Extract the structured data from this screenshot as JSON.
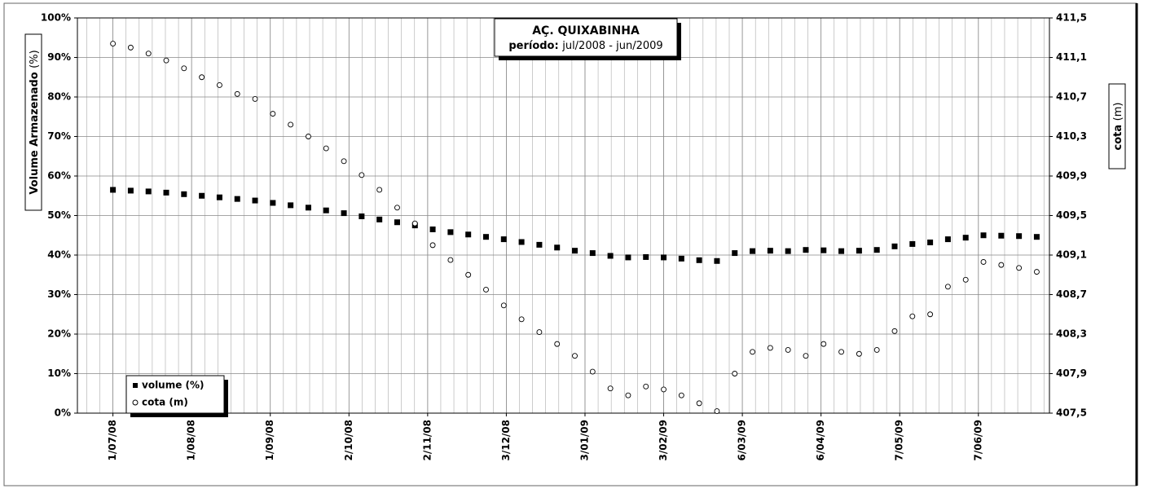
{
  "chart_data": {
    "type": "scatter",
    "title": "AÇ. QUIXABINHA",
    "subtitle_label": "período:",
    "subtitle": "jul/2008 - jun/2009",
    "y_label": "Volume Armazenado",
    "y_label_unit": "(%)",
    "y2_label": "cota",
    "y2_label_unit": "(m)",
    "xlim": [
      "2008-06-17",
      "2009-07-05"
    ],
    "xticks": [
      {
        "value": "2008-07-01",
        "label": "1/07/08"
      },
      {
        "value": "2008-08-01",
        "label": "1/08/08"
      },
      {
        "value": "2008-09-01",
        "label": "1/09/08"
      },
      {
        "value": "2008-10-02",
        "label": "2/10/08"
      },
      {
        "value": "2008-11-02",
        "label": "2/11/08"
      },
      {
        "value": "2008-12-03",
        "label": "3/12/08"
      },
      {
        "value": "2009-01-03",
        "label": "3/01/09"
      },
      {
        "value": "2009-02-03",
        "label": "3/02/09"
      },
      {
        "value": "2009-03-06",
        "label": "6/03/09"
      },
      {
        "value": "2009-04-06",
        "label": "6/04/09"
      },
      {
        "value": "2009-05-07",
        "label": "7/05/09"
      },
      {
        "value": "2009-06-07",
        "label": "7/06/09"
      }
    ],
    "ylim": [
      0,
      100
    ],
    "yticks": [
      {
        "value": 0,
        "label": "0%"
      },
      {
        "value": 10,
        "label": "10%"
      },
      {
        "value": 20,
        "label": "20%"
      },
      {
        "value": 30,
        "label": "30%"
      },
      {
        "value": 40,
        "label": "40%"
      },
      {
        "value": 50,
        "label": "50%"
      },
      {
        "value": 60,
        "label": "60%"
      },
      {
        "value": 70,
        "label": "70%"
      },
      {
        "value": 80,
        "label": "80%"
      },
      {
        "value": 90,
        "label": "90%"
      },
      {
        "value": 100,
        "label": "100%"
      }
    ],
    "y2lim": [
      407.5,
      411.5
    ],
    "y2ticks": [
      {
        "value": 407.5,
        "label": "407,5"
      },
      {
        "value": 407.9,
        "label": "407,9"
      },
      {
        "value": 408.3,
        "label": "408,3"
      },
      {
        "value": 408.7,
        "label": "408,7"
      },
      {
        "value": 409.1,
        "label": "409,1"
      },
      {
        "value": 409.5,
        "label": "409,5"
      },
      {
        "value": 409.9,
        "label": "409,9"
      },
      {
        "value": 410.3,
        "label": "410,3"
      },
      {
        "value": 410.7,
        "label": "410,7"
      },
      {
        "value": 411.1,
        "label": "411,1"
      },
      {
        "value": 411.5,
        "label": "411,5"
      }
    ],
    "grid": true,
    "legend": "lower left",
    "x": [
      "2008-07-01",
      "2008-07-08",
      "2008-07-15",
      "2008-07-22",
      "2008-07-29",
      "2008-08-05",
      "2008-08-12",
      "2008-08-19",
      "2008-08-26",
      "2008-09-02",
      "2008-09-09",
      "2008-09-16",
      "2008-09-23",
      "2008-09-30",
      "2008-10-07",
      "2008-10-14",
      "2008-10-21",
      "2008-10-28",
      "2008-11-04",
      "2008-11-11",
      "2008-11-18",
      "2008-11-25",
      "2008-12-02",
      "2008-12-09",
      "2008-12-16",
      "2008-12-23",
      "2008-12-30",
      "2009-01-06",
      "2009-01-13",
      "2009-01-20",
      "2009-01-27",
      "2009-02-03",
      "2009-02-10",
      "2009-02-17",
      "2009-02-24",
      "2009-03-03",
      "2009-03-10",
      "2009-03-17",
      "2009-03-24",
      "2009-03-31",
      "2009-04-07",
      "2009-04-14",
      "2009-04-21",
      "2009-04-28",
      "2009-05-05",
      "2009-05-12",
      "2009-05-19",
      "2009-05-26",
      "2009-06-02",
      "2009-06-09",
      "2009-06-16",
      "2009-06-23",
      "2009-06-30"
    ],
    "series": [
      {
        "name": "volume (%)",
        "color": "#000000",
        "marker": "square",
        "values": [
          56.5,
          56.3,
          56.1,
          55.8,
          55.4,
          55.0,
          54.6,
          54.2,
          53.8,
          53.2,
          52.6,
          52.0,
          51.3,
          50.6,
          49.8,
          49.0,
          48.3,
          47.5,
          46.5,
          45.8,
          45.2,
          44.6,
          44.0,
          43.3,
          42.6,
          41.9,
          41.1,
          40.5,
          39.8,
          39.4,
          39.5,
          39.4,
          39.1,
          38.7,
          38.5,
          40.5,
          41.0,
          41.1,
          41.0,
          41.3,
          41.2,
          41.0,
          41.1,
          41.3,
          42.2,
          42.8,
          43.2,
          44.0,
          44.4,
          45.0,
          44.9,
          44.8,
          44.6
        ]
      },
      {
        "name": "cota (m)",
        "color": "#000000",
        "marker": "circle",
        "axis": "y2",
        "values": [
          411.24,
          411.2,
          411.14,
          411.07,
          410.99,
          410.9,
          410.82,
          410.73,
          410.68,
          410.53,
          410.42,
          410.3,
          410.18,
          410.05,
          409.91,
          409.76,
          409.58,
          409.42,
          409.2,
          409.05,
          408.9,
          408.75,
          408.59,
          408.45,
          408.32,
          408.2,
          408.08,
          407.92,
          407.75,
          407.68,
          407.77,
          407.74,
          407.68,
          407.6,
          407.52,
          407.9,
          408.12,
          408.16,
          408.14,
          408.08,
          408.2,
          408.12,
          408.1,
          408.14,
          408.33,
          408.48,
          408.5,
          408.78,
          408.85,
          409.03,
          409.0,
          408.97,
          408.93
        ]
      }
    ]
  }
}
